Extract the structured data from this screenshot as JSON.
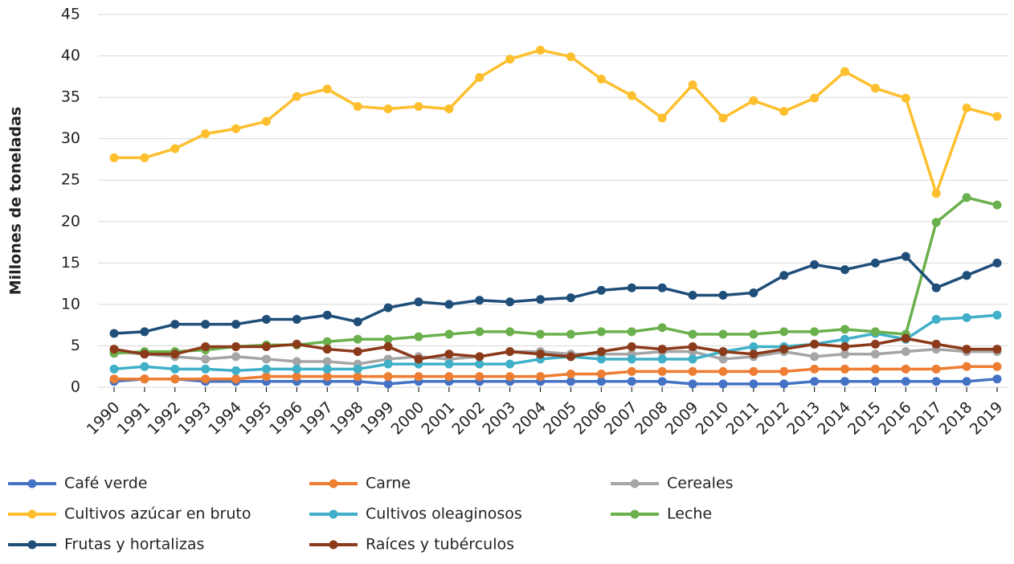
{
  "chart_data": {
    "type": "line",
    "y_label": "Millones de toneladas",
    "categories": [
      "1990",
      "1991",
      "1992",
      "1993",
      "1994",
      "1995",
      "1996",
      "1997",
      "1998",
      "1999",
      "2000",
      "2001",
      "2002",
      "2003",
      "2004",
      "2005",
      "2006",
      "2007",
      "2008",
      "2009",
      "2010",
      "2011",
      "2012",
      "2013",
      "2014",
      "2015",
      "2016",
      "2017",
      "2018",
      "2019"
    ],
    "ylim": [
      0,
      45
    ],
    "yticks": [
      0,
      5,
      10,
      15,
      20,
      25,
      30,
      35,
      40,
      45
    ],
    "grid": true,
    "series": [
      {
        "name": "Café verde",
        "color": "#4472c4",
        "values": [
          0.7,
          1.0,
          1.0,
          0.7,
          0.7,
          0.7,
          0.7,
          0.7,
          0.7,
          0.4,
          0.7,
          0.7,
          0.7,
          0.7,
          0.7,
          0.7,
          0.7,
          0.7,
          0.7,
          0.4,
          0.4,
          0.4,
          0.4,
          0.7,
          0.7,
          0.7,
          0.7,
          0.7,
          0.7,
          1.0
        ]
      },
      {
        "name": "Carne",
        "color": "#ed7d31",
        "values": [
          1.0,
          1.0,
          1.0,
          1.0,
          1.0,
          1.3,
          1.3,
          1.3,
          1.3,
          1.3,
          1.3,
          1.3,
          1.3,
          1.3,
          1.3,
          1.6,
          1.6,
          1.9,
          1.9,
          1.9,
          1.9,
          1.9,
          1.9,
          2.2,
          2.2,
          2.2,
          2.2,
          2.2,
          2.5,
          2.5
        ]
      },
      {
        "name": "Cereales",
        "color": "#a5a5a5",
        "values": [
          4.3,
          4.0,
          3.7,
          3.4,
          3.7,
          3.4,
          3.1,
          3.1,
          2.8,
          3.4,
          3.7,
          3.4,
          3.7,
          4.3,
          4.3,
          4.0,
          4.0,
          4.0,
          4.3,
          4.3,
          3.4,
          3.7,
          4.3,
          3.7,
          4.0,
          4.0,
          4.3,
          4.6,
          4.3,
          4.3
        ]
      },
      {
        "name": "Cultivos azúcar en bruto",
        "color": "#fdbf2d",
        "values": [
          27.7,
          27.7,
          28.8,
          30.6,
          31.2,
          32.1,
          35.1,
          36.0,
          33.9,
          33.6,
          33.9,
          33.6,
          37.4,
          39.6,
          40.7,
          39.9,
          37.2,
          35.2,
          32.5,
          36.5,
          32.5,
          34.6,
          33.3,
          34.9,
          38.1,
          36.1,
          34.9,
          23.4,
          33.7,
          32.7
        ]
      },
      {
        "name": "Cultivos oleaginosos",
        "color": "#3fb0c8",
        "values": [
          2.2,
          2.5,
          2.2,
          2.2,
          2.0,
          2.2,
          2.2,
          2.2,
          2.2,
          2.8,
          2.8,
          2.8,
          2.8,
          2.8,
          3.4,
          3.7,
          3.4,
          3.4,
          3.4,
          3.4,
          4.3,
          4.9,
          4.9,
          5.2,
          5.8,
          6.5,
          5.8,
          8.2,
          8.4,
          8.7
        ]
      },
      {
        "name": "Leche",
        "color": "#6ab04c",
        "values": [
          4.1,
          4.3,
          4.3,
          4.5,
          4.9,
          5.1,
          5.1,
          5.5,
          5.8,
          5.8,
          6.1,
          6.4,
          6.7,
          6.7,
          6.4,
          6.4,
          6.7,
          6.7,
          7.2,
          6.4,
          6.4,
          6.4,
          6.7,
          6.7,
          7.0,
          6.7,
          6.4,
          19.9,
          22.9,
          22.0
        ]
      },
      {
        "name": "Frutas y hortalizas",
        "color": "#1f4e79",
        "values": [
          6.5,
          6.7,
          7.6,
          7.6,
          7.6,
          8.2,
          8.2,
          8.7,
          7.9,
          9.6,
          10.3,
          10.0,
          10.5,
          10.3,
          10.6,
          10.8,
          11.7,
          12.0,
          12.0,
          11.1,
          11.1,
          11.4,
          13.5,
          14.8,
          14.2,
          15.0,
          15.8,
          12.0,
          13.5,
          15.0
        ]
      },
      {
        "name": "Raíces y tubérculos",
        "color": "#8b3a1a",
        "values": [
          4.6,
          4.0,
          4.0,
          4.9,
          4.9,
          4.9,
          5.2,
          4.6,
          4.3,
          4.9,
          3.4,
          4.0,
          3.7,
          4.3,
          4.0,
          3.7,
          4.3,
          4.9,
          4.6,
          4.9,
          4.3,
          4.0,
          4.6,
          5.2,
          4.9,
          5.2,
          5.9,
          5.2,
          4.6,
          4.6
        ]
      }
    ]
  }
}
